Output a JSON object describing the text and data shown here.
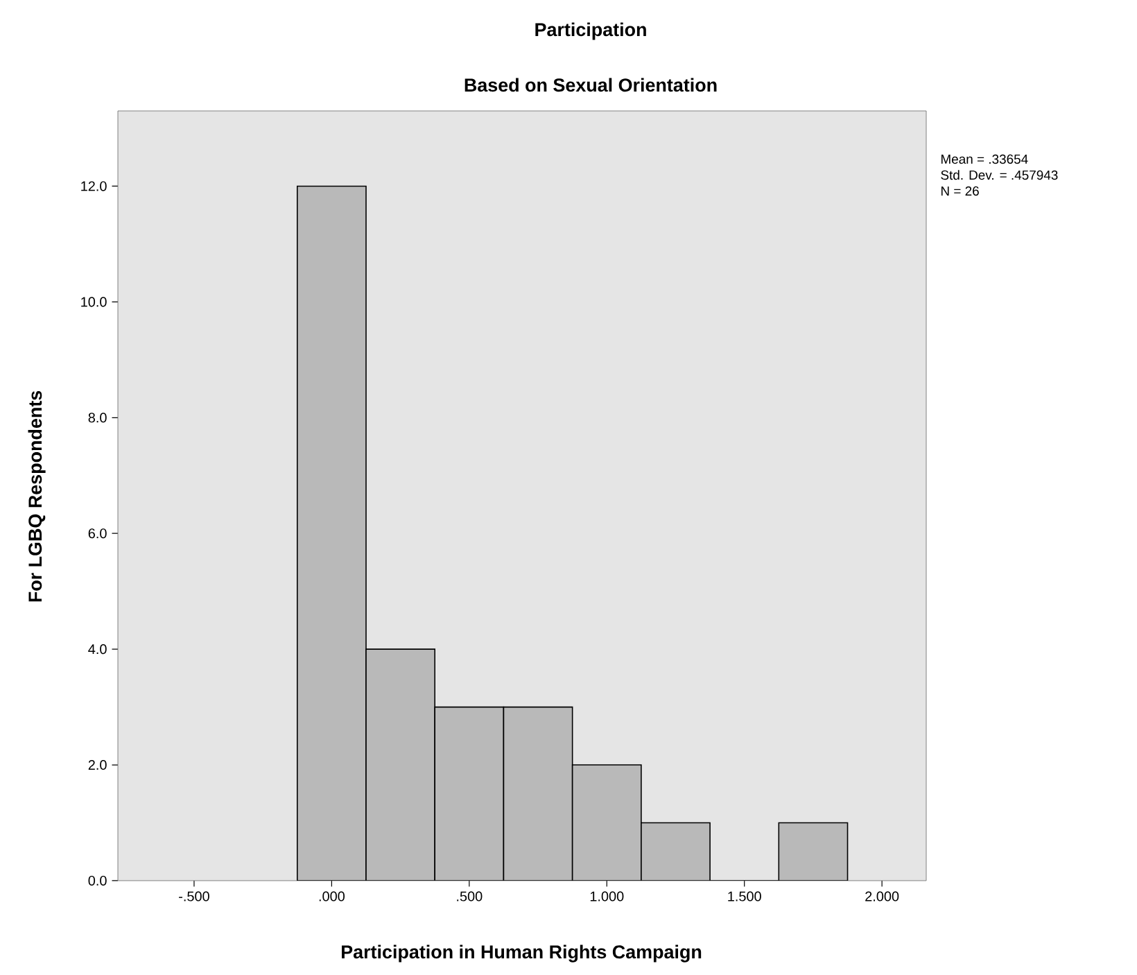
{
  "chart_data": {
    "type": "histogram",
    "title": "Participation",
    "subtitle": "Based on Sexual Orientation",
    "xlabel": "Participation in Human Rights Campaign",
    "ylabel": "For LGBQ Respondents",
    "bins": [
      -0.125,
      0.125,
      0.375,
      0.625,
      0.875,
      1.125,
      1.375,
      1.625,
      1.875
    ],
    "values": [
      12,
      4,
      3,
      3,
      2,
      1,
      0,
      1
    ],
    "color": "#b9b9b9",
    "xlim": [
      -0.777,
      2.161
    ],
    "ylim": [
      0,
      13.3
    ],
    "xticks": [
      {
        "value": -0.5,
        "label": "-.500"
      },
      {
        "value": 0,
        "label": ".000"
      },
      {
        "value": 0.5,
        "label": ".500"
      },
      {
        "value": 1,
        "label": "1.000"
      },
      {
        "value": 1.5,
        "label": "1.500"
      },
      {
        "value": 2,
        "label": "2.000"
      }
    ],
    "yticks": [
      {
        "value": 0,
        "label": "0.0"
      },
      {
        "value": 2,
        "label": "2.0"
      },
      {
        "value": 4,
        "label": "4.0"
      },
      {
        "value": 6,
        "label": "6.0"
      },
      {
        "value": 8,
        "label": "8.0"
      },
      {
        "value": 10,
        "label": "10.0"
      },
      {
        "value": 12,
        "label": "12.0"
      }
    ],
    "grid": false,
    "annotations": [
      "Mean = .33654",
      "Std. Dev. = .457943",
      "N = 26"
    ]
  }
}
